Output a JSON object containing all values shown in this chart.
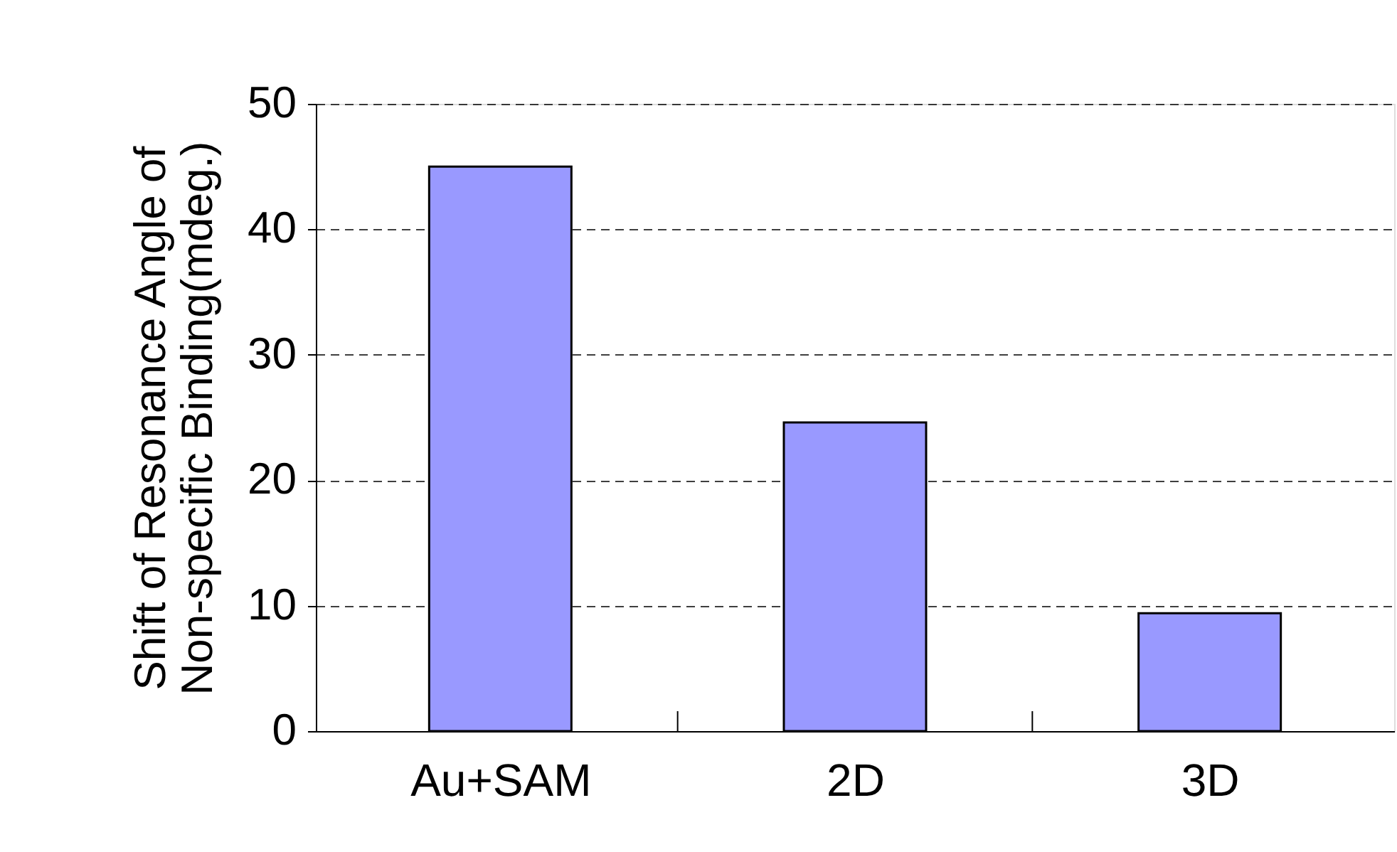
{
  "chart_data": {
    "type": "bar",
    "categories": [
      "Au+SAM",
      "2D",
      "3D"
    ],
    "values": [
      45,
      24.6,
      9.4
    ],
    "color": "#9999ff",
    "ylabel": "Shift of Resonance Angle of\nNon-specific Binding(mdeg.)",
    "ylim": [
      0,
      50
    ],
    "yticks": [
      0,
      10,
      20,
      30,
      40,
      50
    ],
    "grid": "y"
  }
}
